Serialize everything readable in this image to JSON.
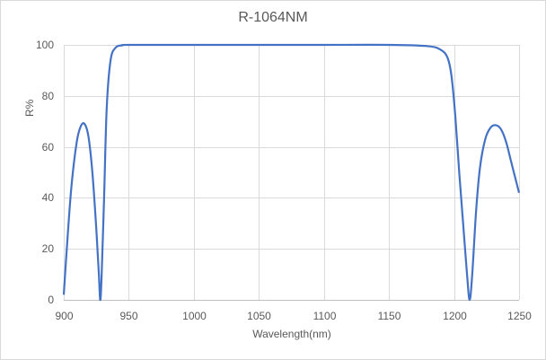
{
  "chart_data": {
    "type": "line",
    "title": "R-1064NM",
    "xlabel": "Wavelength(nm)",
    "ylabel": "R%",
    "xlim": [
      900,
      1250
    ],
    "ylim": [
      0,
      100
    ],
    "xticks": [
      "900",
      "950",
      "1000",
      "1050",
      "1100",
      "1150",
      "1200",
      "1250"
    ],
    "yticks": [
      "0",
      "20",
      "40",
      "60",
      "80",
      "100"
    ],
    "grid": true,
    "legend": "none",
    "series": [
      {
        "name": "R%",
        "color": "#4472c4",
        "x": [
          900,
          903,
          906,
          910,
          913,
          916,
          919,
          922,
          925,
          927,
          928,
          929,
          931,
          933,
          936,
          940,
          945,
          950,
          1000,
          1050,
          1100,
          1150,
          1180,
          1190,
          1195,
          1198,
          1201,
          1204,
          1207,
          1210,
          1212,
          1214,
          1217,
          1220,
          1224,
          1228,
          1232,
          1236,
          1240,
          1244,
          1247,
          1250
        ],
        "values": [
          2,
          25,
          45,
          62,
          68,
          69,
          64,
          50,
          28,
          10,
          0,
          8,
          40,
          75,
          94,
          99,
          99.8,
          100,
          100,
          100,
          100,
          100,
          99.5,
          98,
          95,
          88,
          72,
          50,
          30,
          10,
          0,
          10,
          35,
          52,
          63,
          67.5,
          68.5,
          67,
          62,
          54,
          48,
          42
        ]
      }
    ]
  }
}
